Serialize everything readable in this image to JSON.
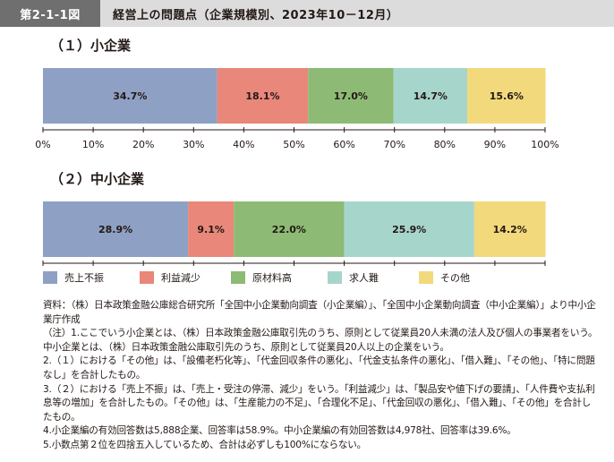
{
  "header": {
    "figure_number": "第2-1-1図",
    "title": "経営上の問題点（企業規模別、2023年10－12月）"
  },
  "colors": {
    "売上不振": "#8ea0c4",
    "利益減少": "#e8877a",
    "原材料高": "#8dbb75",
    "求人難": "#a6d5cb",
    "その他": "#f2d97c"
  },
  "chart_data": [
    {
      "type": "bar",
      "orientation": "horizontal-stacked",
      "title": "（１）小企業",
      "series": [
        {
          "name": "売上不振",
          "value": 34.7,
          "label": "34.7%"
        },
        {
          "name": "利益減少",
          "value": 18.1,
          "label": "18.1%"
        },
        {
          "name": "原材料高",
          "value": 17.0,
          "label": "17.0%"
        },
        {
          "name": "求人難",
          "value": 14.7,
          "label": "14.7%"
        },
        {
          "name": "その他",
          "value": 15.6,
          "label": "15.6%"
        }
      ],
      "xlim": [
        0,
        100
      ],
      "ticks": [
        "0%",
        "10%",
        "20%",
        "30%",
        "40%",
        "50%",
        "60%",
        "70%",
        "80%",
        "90%",
        "100%"
      ]
    },
    {
      "type": "bar",
      "orientation": "horizontal-stacked",
      "title": "（２）中小企業",
      "series": [
        {
          "name": "売上不振",
          "value": 28.9,
          "label": "28.9%"
        },
        {
          "name": "利益減少",
          "value": 9.1,
          "label": "9.1%"
        },
        {
          "name": "原材料高",
          "value": 22.0,
          "label": "22.0%"
        },
        {
          "name": "求人難",
          "value": 25.9,
          "label": "25.9%"
        },
        {
          "name": "その他",
          "value": 14.2,
          "label": "14.2%"
        }
      ],
      "xlim": [
        0,
        100
      ],
      "ticks": [
        "0%",
        "10%",
        "20%",
        "30%",
        "40%",
        "50%",
        "60%",
        "70%",
        "80%",
        "90%",
        "100%"
      ]
    }
  ],
  "legend": [
    "売上不振",
    "利益減少",
    "原材料高",
    "求人難",
    "その他"
  ],
  "notes": [
    "資料：（株）日本政策金融公庫総合研究所「全国中小企業動向調査（小企業編）」、「全国中小企業動向調査（中小企業編）」より中小企業庁作成",
    "（注）1.ここでいう小企業とは、（株）日本政策金融公庫取引先のうち、原則として従業員20人未満の法人及び個人の事業者をいう。中小企業とは、（株）日本政策金融公庫取引先のうち、原則として従業員20人以上の企業をいう。",
    "2.（１）における「その他」は、「設備老朽化等」、「代金回収条件の悪化」、「代金支払条件の悪化」、「借入難」、「その他」、「特に問題なし」を合計したもの。",
    "3.（２）における「売上不振」は、「売上・受注の停滞、減少」をいう。「利益減少」は、「製品安や値下げの要請」、「人件費や支払利息等の増加」を合計したもの。「その他」は、「生産能力の不足」、「合理化不足」、「代金回収の悪化」、「借入難」、「その他」を合計したもの。",
    "4.小企業編の有効回答数は5,888企業、回答率は58.9%。中小企業編の有効回答数は4,978社、回答率は39.6%。",
    "5.小数点第２位を四捨五入しているため、合計は必ずしも100%にならない。"
  ]
}
